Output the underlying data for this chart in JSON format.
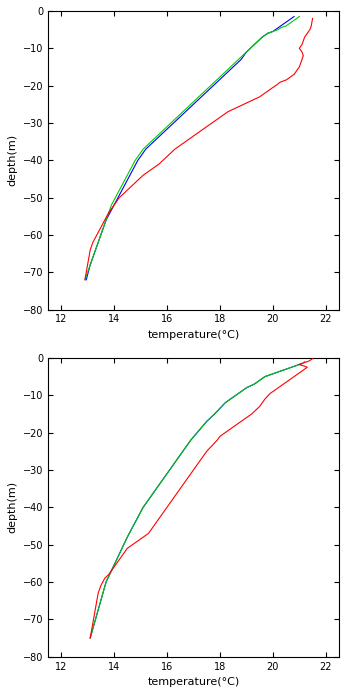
{
  "xlim": [
    11.5,
    22.5
  ],
  "ylim": [
    -80,
    0
  ],
  "xticks": [
    12,
    14,
    16,
    18,
    20,
    22
  ],
  "yticks": [
    0,
    -10,
    -20,
    -30,
    -40,
    -50,
    -60,
    -70,
    -80
  ],
  "xlabel": "temperature(°C)",
  "ylabel": "depth(m)",
  "colors": {
    "red": "#ff0000",
    "green": "#00cc00",
    "blue": "#0000ff"
  },
  "plot1": {
    "red": {
      "temp": [
        12.9,
        12.95,
        13.0,
        13.05,
        13.1,
        13.2,
        13.35,
        13.5,
        13.65,
        13.8,
        14.0,
        14.2,
        14.5,
        14.8,
        15.1,
        15.3,
        15.5,
        15.7,
        15.85,
        16.0,
        16.15,
        16.3,
        16.5,
        16.7,
        16.9,
        17.1,
        17.3,
        17.5,
        17.7,
        17.9,
        18.1,
        18.3,
        18.6,
        18.9,
        19.2,
        19.5,
        19.7,
        19.8,
        19.9,
        20.0,
        20.1,
        20.15,
        20.2,
        20.25,
        20.3,
        20.5,
        20.6,
        20.7,
        20.8,
        20.9,
        21.0,
        21.05,
        21.1,
        21.15,
        21.1,
        21.0,
        21.05,
        21.1,
        21.15,
        21.2,
        21.3,
        21.4,
        21.45,
        21.5
      ],
      "depth": [
        -72,
        -70,
        -68,
        -66,
        -64,
        -62,
        -60,
        -58,
        -56,
        -54,
        -52,
        -50,
        -48,
        -46,
        -44,
        -43,
        -42,
        -41,
        -40,
        -39,
        -38,
        -37,
        -36,
        -35,
        -34,
        -33,
        -32,
        -31,
        -30,
        -29,
        -28,
        -27,
        -26,
        -25,
        -24,
        -23,
        -22,
        -21.5,
        -21,
        -20.5,
        -20,
        -19.8,
        -19.5,
        -19.2,
        -19,
        -18.5,
        -18,
        -17.5,
        -17,
        -16,
        -15,
        -14,
        -13,
        -12,
        -11,
        -10,
        -9.5,
        -9,
        -8,
        -7,
        -6,
        -5,
        -4,
        -2
      ]
    },
    "green": {
      "temp": [
        12.9,
        13.1,
        13.3,
        13.5,
        13.7,
        13.9,
        14.2,
        14.5,
        14.8,
        15.1,
        15.4,
        15.7,
        16.0,
        16.3,
        16.6,
        16.9,
        17.2,
        17.5,
        17.8,
        18.1,
        18.4,
        18.7,
        19.0,
        19.3,
        19.6,
        19.8,
        20.0,
        20.2,
        20.3,
        20.5,
        20.6,
        20.7,
        20.8,
        20.9,
        21.0
      ],
      "depth": [
        -72,
        -68,
        -64,
        -60,
        -56,
        -52,
        -48,
        -44,
        -40,
        -37,
        -35,
        -33,
        -31,
        -29,
        -27,
        -25,
        -23,
        -21,
        -19,
        -17,
        -15,
        -13,
        -11,
        -9,
        -7,
        -6,
        -5.5,
        -5,
        -4.5,
        -4,
        -3.5,
        -3,
        -2.5,
        -2,
        -1.5
      ]
    },
    "blue": {
      "temp": [
        12.95,
        13.1,
        13.3,
        13.5,
        13.7,
        14.0,
        14.3,
        14.6,
        14.9,
        15.2,
        15.5,
        15.8,
        16.1,
        16.4,
        16.7,
        17.0,
        17.3,
        17.6,
        17.9,
        18.2,
        18.5,
        18.8,
        19.0,
        19.3,
        19.6,
        19.8,
        20.0,
        20.1,
        20.2,
        20.3,
        20.4,
        20.5,
        20.6,
        20.7,
        20.8
      ],
      "depth": [
        -72,
        -68,
        -64,
        -60,
        -56,
        -52,
        -48,
        -44,
        -40,
        -37,
        -35,
        -33,
        -31,
        -29,
        -27,
        -25,
        -23,
        -21,
        -19,
        -17,
        -15,
        -13,
        -11,
        -9,
        -7,
        -6,
        -5.5,
        -5,
        -4.5,
        -4,
        -3.5,
        -3,
        -2.5,
        -2,
        -1.5
      ]
    }
  },
  "plot2": {
    "red": {
      "temp": [
        13.1,
        13.15,
        13.2,
        13.25,
        13.3,
        13.35,
        13.4,
        13.5,
        13.65,
        13.8,
        13.9,
        14.0,
        14.1,
        14.2,
        14.3,
        14.4,
        14.5,
        14.7,
        14.9,
        15.1,
        15.3,
        15.5,
        15.7,
        15.9,
        16.1,
        16.3,
        16.5,
        16.7,
        16.9,
        17.1,
        17.3,
        17.5,
        17.7,
        17.9,
        18.0,
        18.1,
        18.2,
        18.3,
        18.4,
        18.5,
        18.6,
        18.7,
        18.8,
        19.0,
        19.2,
        19.5,
        19.7,
        19.9,
        20.0,
        20.1,
        20.2,
        20.3,
        20.4,
        20.5,
        20.6,
        20.8,
        21.0,
        21.1,
        21.2,
        21.3,
        21.2,
        21.1,
        21.0,
        21.1,
        21.2,
        21.3,
        21.4,
        21.45,
        21.5
      ],
      "depth": [
        -75,
        -73,
        -71,
        -69,
        -67,
        -65,
        -63,
        -61,
        -59,
        -58,
        -57,
        -56,
        -55,
        -54,
        -53,
        -52,
        -51,
        -50,
        -49,
        -48,
        -47,
        -45,
        -43,
        -41,
        -39,
        -37,
        -35,
        -33,
        -31,
        -29,
        -27,
        -25,
        -23.5,
        -22,
        -21,
        -20.5,
        -20,
        -19.5,
        -19,
        -18.5,
        -18,
        -17.5,
        -17,
        -16,
        -15,
        -13,
        -11,
        -9.5,
        -9,
        -8.5,
        -8,
        -7.5,
        -7,
        -6.5,
        -6,
        -5,
        -4,
        -3.5,
        -3,
        -2.5,
        -2.2,
        -2,
        -1.8,
        -1.5,
        -1.2,
        -1,
        -0.7,
        -0.4,
        -0.2
      ]
    },
    "green": {
      "temp": [
        13.1,
        13.3,
        13.5,
        13.7,
        13.9,
        14.1,
        14.3,
        14.5,
        14.8,
        15.1,
        15.4,
        15.7,
        16.0,
        16.3,
        16.6,
        16.9,
        17.2,
        17.5,
        17.8,
        18.0,
        18.2,
        18.5,
        18.8,
        19.0,
        19.3,
        19.5,
        19.7,
        19.9,
        20.1,
        20.3,
        20.5,
        20.7,
        20.9,
        21.1,
        21.2
      ],
      "depth": [
        -75,
        -70,
        -65,
        -60,
        -57,
        -54,
        -51,
        -48,
        -44,
        -40,
        -37,
        -34,
        -31,
        -28,
        -25,
        -22,
        -19.5,
        -17,
        -15,
        -13.5,
        -12,
        -10.5,
        -9,
        -8,
        -7,
        -6,
        -5,
        -4.5,
        -4,
        -3.5,
        -3,
        -2.5,
        -2,
        -1.5,
        -1
      ]
    },
    "blue": {
      "temp": [
        13.1,
        13.3,
        13.5,
        13.7,
        13.9,
        14.1,
        14.3,
        14.5,
        14.8,
        15.1,
        15.4,
        15.7,
        16.0,
        16.3,
        16.6,
        16.9,
        17.2,
        17.5,
        17.8,
        18.0,
        18.2,
        18.5,
        18.8,
        19.0,
        19.3,
        19.5,
        19.7,
        19.9,
        20.1,
        20.3,
        20.5,
        20.7,
        20.9,
        21.0,
        21.1
      ],
      "depth": [
        -75,
        -70,
        -65,
        -60,
        -57,
        -54,
        -51,
        -48,
        -44,
        -40,
        -37,
        -34,
        -31,
        -28,
        -25,
        -22,
        -19.5,
        -17,
        -15,
        -13.5,
        -12,
        -10.5,
        -9,
        -8,
        -7,
        -6,
        -5,
        -4.5,
        -4,
        -3.5,
        -3,
        -2.5,
        -2,
        -1.7,
        -1.5
      ]
    }
  },
  "linewidth": 0.8,
  "background_color": "#ffffff",
  "axes_color": "#000000"
}
